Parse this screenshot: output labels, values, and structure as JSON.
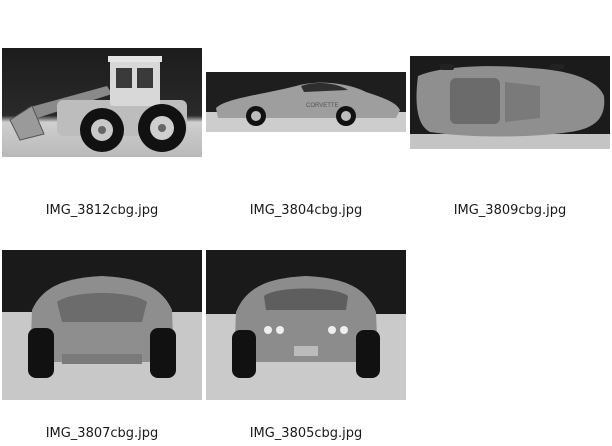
{
  "gallery": {
    "items": [
      {
        "filename": "IMG_3812cbg.jpg",
        "subject": "toy-front-loader-tractor"
      },
      {
        "filename": "IMG_3804cbg.jpg",
        "subject": "toy-corvette-side",
        "badge": "CORVETTE"
      },
      {
        "filename": "IMG_3809cbg.jpg",
        "subject": "toy-car-top-view"
      },
      {
        "filename": "IMG_3807cbg.jpg",
        "subject": "toy-car-front-view"
      },
      {
        "filename": "IMG_3805cbg.jpg",
        "subject": "toy-car-rear-view"
      }
    ]
  }
}
